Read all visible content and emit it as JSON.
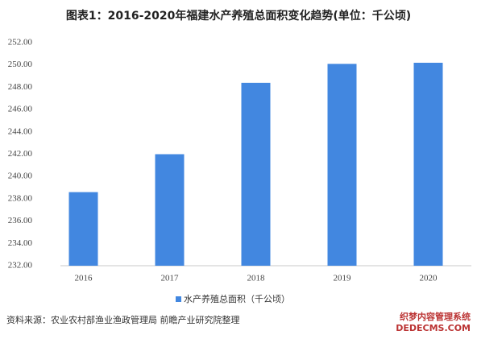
{
  "chart_data": {
    "type": "bar",
    "title": "图表1：2016-2020年福建水产养殖总面积变化趋势(单位：千公顷)",
    "categories": [
      "2016",
      "2017",
      "2018",
      "2019",
      "2020"
    ],
    "series": [
      {
        "name": "水产养殖总面积（千公顷）",
        "color": "#4287e0",
        "values": [
          238.6,
          242.0,
          248.4,
          250.1,
          250.2
        ]
      }
    ],
    "ylim": [
      232,
      252
    ],
    "yticks": [
      {
        "value": 232,
        "label": "232.00"
      },
      {
        "value": 234,
        "label": "234.00"
      },
      {
        "value": 236,
        "label": "236.00"
      },
      {
        "value": 238,
        "label": "238.00"
      },
      {
        "value": 240,
        "label": "240.00"
      },
      {
        "value": 242,
        "label": "242.00"
      },
      {
        "value": 244,
        "label": "244.00"
      },
      {
        "value": 246,
        "label": "246.00"
      },
      {
        "value": 248,
        "label": "248.00"
      },
      {
        "value": 250,
        "label": "250.00"
      },
      {
        "value": 252,
        "label": "252.00"
      }
    ],
    "source": "资料来源：农业农村部渔业渔政管理局 前瞻产业研究院整理",
    "watermark": [
      "织梦内容管理系统",
      "DEDECMS.COM"
    ]
  }
}
